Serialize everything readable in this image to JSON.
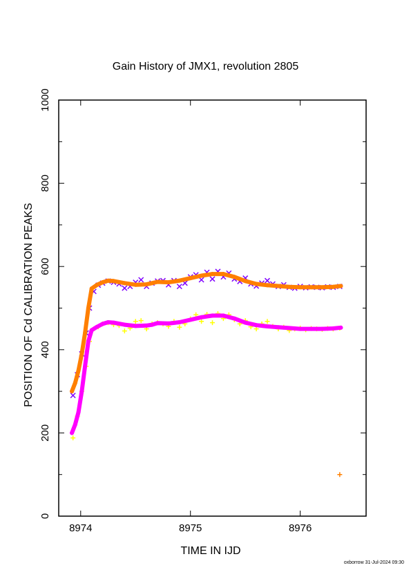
{
  "chart_data": {
    "type": "scatter",
    "title": "Gain History of JMX1, revolution 2805",
    "xlabel": "TIME IN IJD",
    "ylabel": "POSITION OF Cd CALIBRATION PEAKS",
    "xlim": [
      8973.8,
      8976.6
    ],
    "ylim": [
      0,
      1000
    ],
    "x_ticks": [
      8974,
      8975,
      8976
    ],
    "y_ticks": [
      0,
      200,
      400,
      600,
      800,
      1000
    ],
    "grid": false,
    "series": [
      {
        "color": "#7f00ff",
        "marker": "x",
        "x": [
          8973.93,
          8973.97,
          8974.01,
          8974.05,
          8974.08,
          8974.12,
          8974.16,
          8974.2,
          8974.25,
          8974.3,
          8974.35,
          8974.4,
          8974.45,
          8974.5,
          8974.55,
          8974.6,
          8974.65,
          8974.7,
          8974.75,
          8974.8,
          8974.85,
          8974.9,
          8974.95,
          8975.0,
          8975.05,
          8975.1,
          8975.15,
          8975.2,
          8975.25,
          8975.3,
          8975.35,
          8975.4,
          8975.45,
          8975.5,
          8975.55,
          8975.6,
          8975.65,
          8975.7,
          8975.75,
          8975.8,
          8975.85,
          8975.9,
          8975.95,
          8976.0,
          8976.05,
          8976.1,
          8976.15,
          8976.2,
          8976.25,
          8976.3,
          8976.36
        ],
        "y": [
          290,
          340,
          390,
          440,
          500,
          540,
          555,
          560,
          565,
          562,
          558,
          548,
          552,
          562,
          568,
          552,
          560,
          565,
          566,
          556,
          566,
          552,
          560,
          575,
          580,
          568,
          586,
          570,
          588,
          575,
          584,
          570,
          564,
          572,
          558,
          553,
          560,
          566,
          558,
          552,
          556,
          550,
          548,
          552,
          549,
          551,
          550,
          549,
          551,
          550,
          552
        ]
      },
      {
        "color": "#ffff00",
        "marker": "+",
        "x": [
          8973.93,
          8973.97,
          8974.01,
          8974.05,
          8974.08,
          8974.12,
          8974.16,
          8974.2,
          8974.25,
          8974.3,
          8974.35,
          8974.4,
          8974.45,
          8974.5,
          8974.55,
          8974.6,
          8974.65,
          8974.7,
          8974.75,
          8974.8,
          8974.85,
          8974.9,
          8974.95,
          8975.0,
          8975.05,
          8975.1,
          8975.15,
          8975.2,
          8975.25,
          8975.3,
          8975.35,
          8975.4,
          8975.45,
          8975.5,
          8975.55,
          8975.6,
          8975.65,
          8975.7,
          8975.75,
          8975.8,
          8975.85,
          8975.9,
          8975.95,
          8976.0,
          8976.05,
          8976.1,
          8976.15,
          8976.2,
          8976.25,
          8976.3,
          8976.36
        ],
        "y": [
          188,
          240,
          300,
          360,
          420,
          450,
          455,
          462,
          465,
          460,
          458,
          445,
          452,
          468,
          470,
          450,
          462,
          465,
          462,
          456,
          468,
          454,
          462,
          474,
          484,
          468,
          485,
          465,
          487,
          475,
          484,
          472,
          462,
          470,
          455,
          450,
          462,
          468,
          456,
          450,
          454,
          446,
          450,
          452,
          448,
          451,
          450,
          449,
          451,
          450,
          452
        ]
      },
      {
        "color": "#ff00ff",
        "marker": "curve",
        "x": [
          8973.92,
          8973.95,
          8973.98,
          8974.01,
          8974.04,
          8974.07,
          8974.1,
          8974.15,
          8974.2,
          8974.25,
          8974.3,
          8974.4,
          8974.5,
          8974.6,
          8974.65,
          8974.7,
          8974.8,
          8974.9,
          8975.0,
          8975.1,
          8975.2,
          8975.3,
          8975.4,
          8975.5,
          8975.6,
          8975.7,
          8975.8,
          8975.9,
          8976.0,
          8976.1,
          8976.2,
          8976.3,
          8976.37
        ],
        "y": [
          200,
          220,
          250,
          300,
          360,
          420,
          447,
          455,
          462,
          466,
          465,
          460,
          457,
          458,
          460,
          464,
          463,
          466,
          472,
          478,
          482,
          482,
          475,
          465,
          459,
          456,
          454,
          452,
          450,
          450,
          450,
          451,
          453
        ]
      },
      {
        "color": "#ff7f00",
        "marker": "curve",
        "x": [
          8973.92,
          8973.95,
          8973.98,
          8974.01,
          8974.04,
          8974.07,
          8974.1,
          8974.15,
          8974.2,
          8974.25,
          8974.3,
          8974.4,
          8974.5,
          8974.6,
          8974.65,
          8974.7,
          8974.8,
          8974.9,
          8975.0,
          8975.1,
          8975.2,
          8975.3,
          8975.4,
          8975.5,
          8975.6,
          8975.7,
          8975.8,
          8975.9,
          8976.0,
          8976.1,
          8976.2,
          8976.3,
          8976.37
        ],
        "y": [
          300,
          320,
          350,
          390,
          440,
          500,
          547,
          556,
          562,
          566,
          565,
          560,
          556,
          557,
          560,
          563,
          562,
          566,
          572,
          578,
          582,
          582,
          575,
          565,
          558,
          555,
          553,
          551,
          550,
          550,
          550,
          551,
          553
        ]
      },
      {
        "color": "#ff7f00",
        "marker": "+",
        "x": [
          8976.36
        ],
        "y": [
          100
        ]
      }
    ]
  },
  "footer": "oxborrow 31-Jul-2024 09:30"
}
